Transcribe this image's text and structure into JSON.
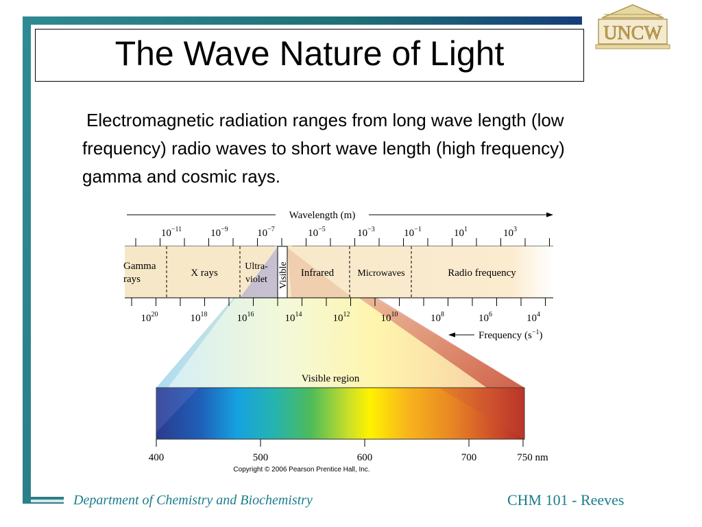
{
  "slide": {
    "title": "The Wave Nature of Light",
    "body": "Electromagnetic radiation ranges from long wave length (low frequency) radio waves to short wave length (high frequency) gamma and cosmic rays.",
    "footer_left": "Department of Chemistry and Biochemistry",
    "footer_right": "CHM 101 - Reeves",
    "logo_text": "UNCW"
  },
  "spectrum": {
    "wavelength_label": "Wavelength (m)",
    "frequency_label": "Frequency (s",
    "frequency_exp": "−1",
    "frequency_close": ")",
    "wavelength_ticks": [
      {
        "base": "10",
        "exp": "−11"
      },
      {
        "base": "10",
        "exp": "−9"
      },
      {
        "base": "10",
        "exp": "−7"
      },
      {
        "base": "10",
        "exp": "−5"
      },
      {
        "base": "10",
        "exp": "−3"
      },
      {
        "base": "10",
        "exp": "−1"
      },
      {
        "base": "10",
        "exp": "1"
      },
      {
        "base": "10",
        "exp": "3"
      }
    ],
    "frequency_ticks": [
      {
        "base": "10",
        "exp": "20"
      },
      {
        "base": "10",
        "exp": "18"
      },
      {
        "base": "10",
        "exp": "16"
      },
      {
        "base": "10",
        "exp": "14"
      },
      {
        "base": "10",
        "exp": "12"
      },
      {
        "base": "10",
        "exp": "10"
      },
      {
        "base": "10",
        "exp": "8"
      },
      {
        "base": "10",
        "exp": "6"
      },
      {
        "base": "10",
        "exp": "4"
      }
    ],
    "regions": {
      "gamma_line1": "Gamma",
      "gamma_line2": "rays",
      "xrays": "X rays",
      "uv_line1": "Ultra-",
      "uv_line2": "violet",
      "visible": "Visible",
      "infrared": "Infrared",
      "microwaves": "Microwaves",
      "radio": "Radio frequency"
    },
    "visible_region_label": "Visible region",
    "nm_ticks": [
      "400",
      "500",
      "600",
      "700",
      "750 nm"
    ],
    "copyright": "Copyright © 2006 Pearson Prentice Hall, Inc."
  }
}
